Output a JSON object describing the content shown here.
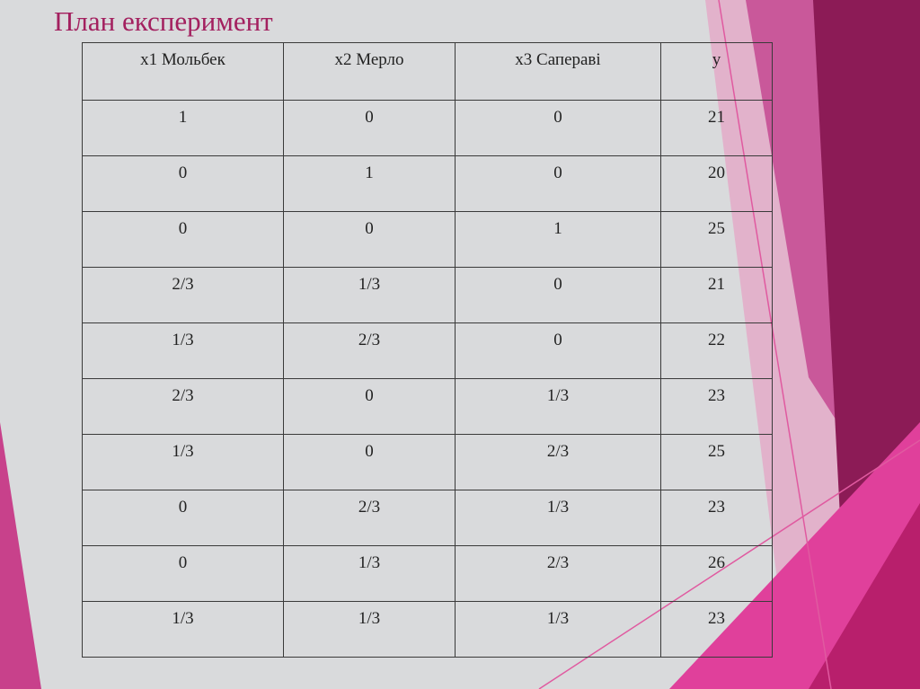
{
  "header": {
    "title": "План експеримент"
  },
  "table": {
    "columns": [
      "x1 Мольбек",
      "x2 Мерло",
      "x3 Сапераві",
      "y"
    ],
    "rows": [
      [
        "1",
        "0",
        "0",
        "21"
      ],
      [
        "0",
        "1",
        "0",
        "20"
      ],
      [
        "0",
        "0",
        "1",
        "25"
      ],
      [
        "2/3",
        "1/3",
        "0",
        "21"
      ],
      [
        "1/3",
        "2/3",
        "0",
        "22"
      ],
      [
        "2/3",
        "0",
        "1/3",
        "23"
      ],
      [
        "1/3",
        "0",
        "2/3",
        "25"
      ],
      [
        "0",
        "2/3",
        "1/3",
        "23"
      ],
      [
        "0",
        "1/3",
        "2/3",
        "26"
      ],
      [
        "1/3",
        "1/3",
        "1/3",
        "23"
      ]
    ]
  }
}
